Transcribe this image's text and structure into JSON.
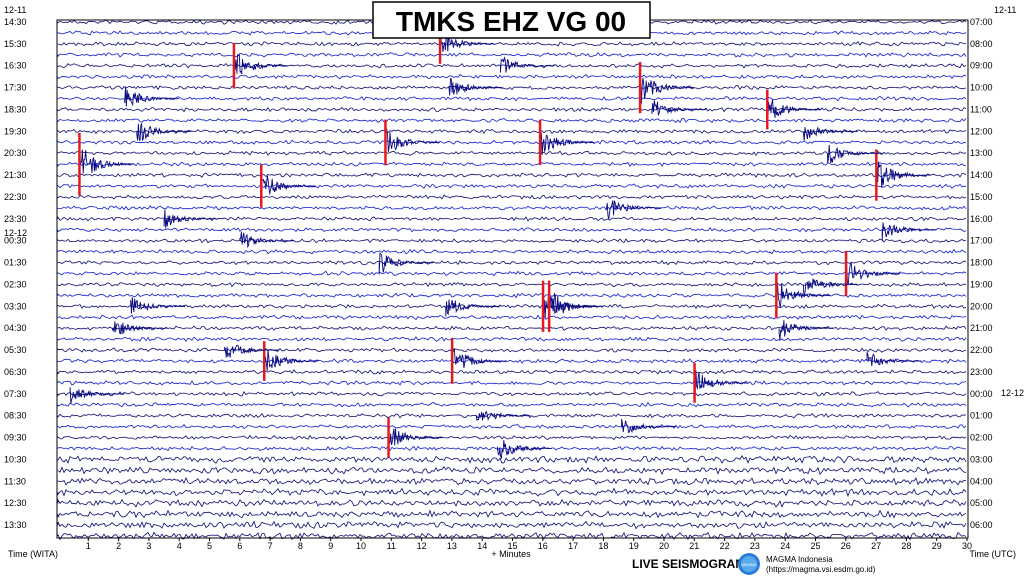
{
  "chart_data": {
    "type": "line",
    "title": "TMKS EHZ VG 00",
    "left_date_start": "12-11",
    "left_date_next": "12-12",
    "right_date_start": "12-11",
    "right_date_next": "12-12",
    "left_time_labels": [
      "14:30",
      "15:30",
      "16:30",
      "17:30",
      "18:30",
      "19:30",
      "20:30",
      "21:30",
      "22:30",
      "23:30",
      "00:30",
      "01:30",
      "02:30",
      "03:30",
      "04:30",
      "05:30",
      "06:30",
      "07:30",
      "08:30",
      "09:30",
      "10:30",
      "11:30",
      "12:30",
      "13:30"
    ],
    "right_time_labels": [
      "07:00",
      "08:00",
      "09:00",
      "10:00",
      "11:00",
      "12:00",
      "13:00",
      "14:00",
      "15:00",
      "16:00",
      "17:00",
      "18:00",
      "19:00",
      "20:00",
      "21:00",
      "22:00",
      "23:00",
      "00:00",
      "01:00",
      "02:00",
      "03:00",
      "04:00",
      "05:00",
      "06:00"
    ],
    "x_ticks": [
      1,
      2,
      3,
      4,
      5,
      6,
      7,
      8,
      9,
      10,
      11,
      12,
      13,
      14,
      15,
      16,
      17,
      18,
      19,
      20,
      21,
      22,
      23,
      24,
      25,
      26,
      27,
      28,
      29,
      30
    ],
    "x_range": [
      0,
      30
    ],
    "xlabel_left": "Time (WITA)",
    "xlabel_center": "+ Minutes",
    "xlabel_right": "Time (UTC)",
    "trace_rows": 48,
    "trace_colors": [
      "#0a1ad0",
      "#0a0a70"
    ],
    "clip_color": "#e8191c",
    "events": [
      {
        "row": 4,
        "minute": 5.8,
        "amp": 1.6,
        "clip": true
      },
      {
        "row": 2,
        "minute": 12.6,
        "amp": 1.4,
        "clip": true
      },
      {
        "row": 6,
        "minute": 19.2,
        "amp": 1.8,
        "clip": true
      },
      {
        "row": 8,
        "minute": 23.4,
        "amp": 1.4,
        "clip": true
      },
      {
        "row": 11,
        "minute": 10.8,
        "amp": 1.6,
        "clip": true
      },
      {
        "row": 11,
        "minute": 15.9,
        "amp": 1.6,
        "clip": true
      },
      {
        "row": 15,
        "minute": 6.7,
        "amp": 1.5,
        "clip": true
      },
      {
        "row": 14,
        "minute": 27.0,
        "amp": 1.8,
        "clip": true
      },
      {
        "row": 13,
        "minute": 0.7,
        "amp": 2.2,
        "clip": true
      },
      {
        "row": 26,
        "minute": 16.0,
        "amp": 1.8,
        "clip": true
      },
      {
        "row": 26,
        "minute": 16.2,
        "amp": 1.8,
        "clip": true
      },
      {
        "row": 23,
        "minute": 26.0,
        "amp": 1.6,
        "clip": true
      },
      {
        "row": 25,
        "minute": 23.7,
        "amp": 1.6,
        "clip": true
      },
      {
        "row": 31,
        "minute": 6.8,
        "amp": 1.4,
        "clip": true
      },
      {
        "row": 31,
        "minute": 13.0,
        "amp": 1.6,
        "clip": true
      },
      {
        "row": 33,
        "minute": 21.0,
        "amp": 1.4,
        "clip": true
      },
      {
        "row": 38,
        "minute": 10.9,
        "amp": 1.4,
        "clip": true
      },
      {
        "row": 7,
        "minute": 2.2,
        "amp": 1.2,
        "clip": false
      },
      {
        "row": 10,
        "minute": 2.6,
        "amp": 1.2,
        "clip": false
      },
      {
        "row": 6,
        "minute": 12.9,
        "amp": 1.1,
        "clip": false
      },
      {
        "row": 4,
        "minute": 14.6,
        "amp": 1.0,
        "clip": false
      },
      {
        "row": 8,
        "minute": 19.6,
        "amp": 1.1,
        "clip": false
      },
      {
        "row": 10,
        "minute": 24.6,
        "amp": 1.0,
        "clip": false
      },
      {
        "row": 12,
        "minute": 25.4,
        "amp": 1.2,
        "clip": false
      },
      {
        "row": 17,
        "minute": 18.1,
        "amp": 1.2,
        "clip": false
      },
      {
        "row": 18,
        "minute": 3.5,
        "amp": 1.0,
        "clip": false
      },
      {
        "row": 19,
        "minute": 27.2,
        "amp": 1.1,
        "clip": false
      },
      {
        "row": 20,
        "minute": 6.0,
        "amp": 1.0,
        "clip": false
      },
      {
        "row": 22,
        "minute": 10.6,
        "amp": 1.2,
        "clip": false
      },
      {
        "row": 24,
        "minute": 24.6,
        "amp": 1.2,
        "clip": false
      },
      {
        "row": 26,
        "minute": 2.4,
        "amp": 1.0,
        "clip": false
      },
      {
        "row": 26,
        "minute": 12.8,
        "amp": 1.1,
        "clip": false
      },
      {
        "row": 28,
        "minute": 1.8,
        "amp": 1.1,
        "clip": false
      },
      {
        "row": 28,
        "minute": 23.8,
        "amp": 1.2,
        "clip": false
      },
      {
        "row": 30,
        "minute": 5.5,
        "amp": 1.2,
        "clip": false
      },
      {
        "row": 31,
        "minute": 26.7,
        "amp": 1.0,
        "clip": false
      },
      {
        "row": 34,
        "minute": 0.4,
        "amp": 1.0,
        "clip": false
      },
      {
        "row": 36,
        "minute": 13.8,
        "amp": 1.1,
        "clip": false
      },
      {
        "row": 37,
        "minute": 18.6,
        "amp": 1.0,
        "clip": false
      },
      {
        "row": 39,
        "minute": 14.5,
        "amp": 1.3,
        "clip": false
      }
    ]
  },
  "footer": {
    "live_label": "LIVE SEISMOGRAM",
    "org_name": "MAGMA Indonesia",
    "org_url": "(https://magma.vsi.esdm.go.id)",
    "logo_text": "MAGMA"
  }
}
